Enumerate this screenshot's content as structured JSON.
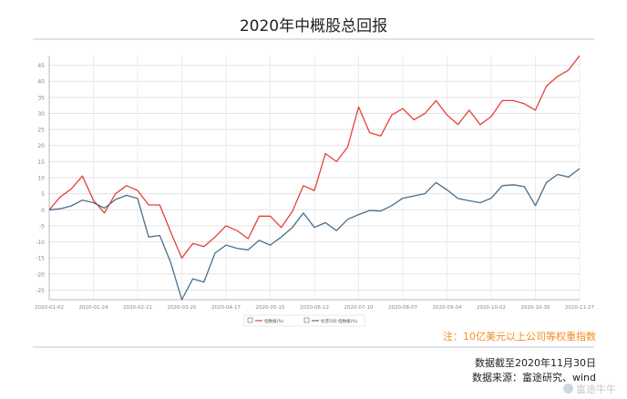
{
  "title": "2020年中概股总回报",
  "note": "注：10亿美元以上公司等权重指数",
  "footer": {
    "line1": "数据截至2020年11月30日",
    "line2": "数据来源：富途研究、wind"
  },
  "watermark": "富途牛牛",
  "colors": {
    "series1": "#e8403a",
    "series2": "#4a6f8c"
  },
  "chart_data": {
    "type": "line",
    "ylim": [
      -28,
      48
    ],
    "yticks": [
      -25,
      -20,
      -15,
      -10,
      -5,
      0,
      5,
      10,
      15,
      20,
      25,
      30,
      35,
      40,
      45
    ],
    "xtick_labels": [
      "2020-01-02",
      "2020-01-24",
      "2020-02-21",
      "2020-03-20",
      "2020-04-17",
      "2020-05-15",
      "2020-06-12",
      "2020-07-10",
      "2020-08-07",
      "2020-09-04",
      "2020-10-02",
      "2020-10-30",
      "2020-11-27"
    ],
    "grid": true,
    "legend_position": "bottom",
    "series": [
      {
        "name": "指数报(%)",
        "values": [
          0,
          4,
          6.5,
          10.5,
          3,
          -1,
          5,
          7.5,
          6,
          1.5,
          1.5,
          -7,
          -15,
          -10.5,
          -11.5,
          -8.5,
          -5,
          -6.5,
          -9,
          -2,
          -2,
          -5.5,
          -0.5,
          7.5,
          6,
          17.5,
          15,
          19.5,
          32,
          24,
          23,
          29.5,
          31.5,
          28,
          30,
          34,
          29.5,
          26.5,
          31,
          26.5,
          29,
          34,
          34,
          33,
          31,
          38.5,
          41.5,
          43.5,
          48
        ]
      },
      {
        "name": "标普500 指数报(%)",
        "values": [
          0,
          0.3,
          1.2,
          3,
          2.2,
          0.5,
          3.2,
          4.5,
          3.5,
          -8.5,
          -8,
          -16.5,
          -28,
          -21.5,
          -22.5,
          -13.5,
          -11,
          -12,
          -12.5,
          -9.5,
          -11,
          -8.5,
          -5.5,
          -1,
          -5.5,
          -4,
          -6.5,
          -3,
          -1.5,
          -0.2,
          -0.4,
          1.3,
          3.6,
          4.3,
          5,
          8.5,
          6.2,
          3.5,
          2.8,
          2.2,
          3.6,
          7.5,
          7.8,
          7.2,
          1.3,
          8.5,
          11,
          10.2,
          12.8
        ]
      }
    ]
  }
}
